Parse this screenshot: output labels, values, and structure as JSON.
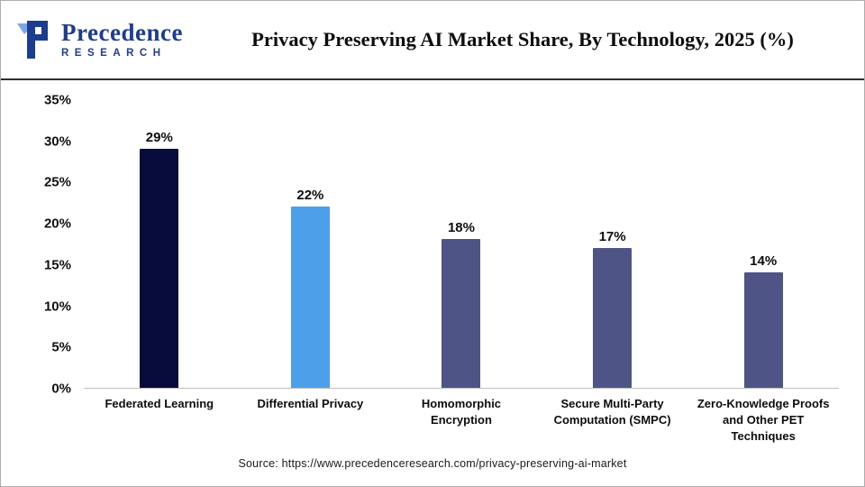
{
  "logo": {
    "name": "Precedence",
    "subtitle": "RESEARCH"
  },
  "footer": {
    "source": "Source: https://www.precedenceresearch.com/privacy-preserving-ai-market"
  },
  "chart_data": {
    "type": "bar",
    "title": "Privacy Preserving AI Market Share, By Technology, 2025 (%)",
    "categories": [
      "Federated Learning",
      "Differential Privacy",
      "Homomorphic Encryption",
      "Secure Multi-Party Computation (SMPC)",
      "Zero-Knowledge Proofs and Other PET Techniques"
    ],
    "values": [
      29,
      22,
      18,
      17,
      14
    ],
    "value_labels": [
      "29%",
      "22%",
      "18%",
      "17%",
      "14%"
    ],
    "bar_colors": [
      "#070b3c",
      "#4c9fe8",
      "#4e5486",
      "#4e5486",
      "#4e5486"
    ],
    "xlabel": "",
    "ylabel": "",
    "ylim": [
      0,
      35
    ],
    "ytick_step": 5,
    "ytick_labels": [
      "0%",
      "5%",
      "10%",
      "15%",
      "20%",
      "25%",
      "30%",
      "35%"
    ],
    "grid": false,
    "legend": "none",
    "accent_colors": {
      "logo_blue": "#1d3d8f",
      "axis_line": "#bfbfbf",
      "text": "#111111"
    }
  }
}
